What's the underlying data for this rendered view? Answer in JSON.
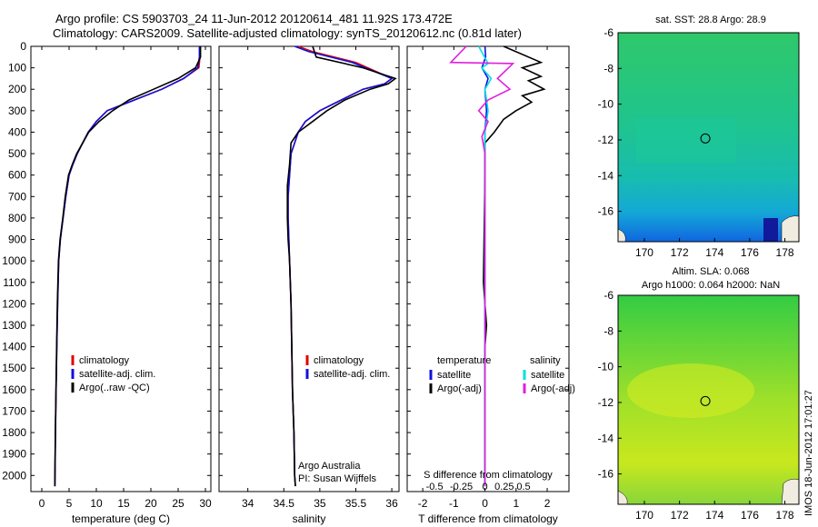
{
  "header": {
    "line1": "Argo profile: CS 5903703_24 11-Jun-2012 20120614_481 11.92S 173.472E",
    "line2": "Climatology: CARS2009. Satellite-adjusted climatology: synTS_20120612.nc (0.81d later)"
  },
  "side_stamp": "IMOS 18-Jun-2012 17:01:27",
  "colors": {
    "climatology": "#e00000",
    "satellite": "#1010e0",
    "argo": "#000000",
    "sal_sat": "#00e0e0",
    "sal_argo": "#e020e0"
  },
  "chart_data": [
    {
      "type": "line",
      "xlabel": "temperature (deg C)",
      "xlim": [
        -2,
        31
      ],
      "xticks": [
        0,
        5,
        10,
        15,
        20,
        25,
        30
      ],
      "ylim": [
        2075,
        0
      ],
      "yticks": [
        0,
        100,
        200,
        300,
        400,
        500,
        600,
        700,
        800,
        900,
        1000,
        1100,
        1200,
        1300,
        1400,
        1500,
        1600,
        1700,
        1800,
        1900,
        2000
      ],
      "legend": [
        "climatology",
        "satellite-adj. clim.",
        "Argo(..raw -QC)"
      ],
      "series": [
        {
          "name": "climatology",
          "x": [
            29,
            29,
            28.8,
            26,
            22,
            17,
            12,
            10,
            8.5,
            7.5,
            6.5,
            5.7,
            5,
            4.4,
            3.9,
            3.4,
            3.1,
            2.9,
            2.75,
            2.62,
            2.5,
            2.4
          ],
          "y": [
            0,
            50,
            100,
            150,
            200,
            250,
            300,
            350,
            400,
            450,
            500,
            550,
            600,
            700,
            800,
            900,
            1000,
            1200,
            1400,
            1600,
            1800,
            2050
          ]
        },
        {
          "name": "satellite-adj. clim.",
          "x": [
            28.9,
            28.9,
            28.6,
            26,
            22,
            17,
            12,
            10,
            8.5,
            7.5,
            6.5,
            5.7,
            5,
            4.4,
            3.9,
            3.4,
            3.1,
            2.9,
            2.75,
            2.62,
            2.5,
            2.4
          ],
          "y": [
            0,
            50,
            100,
            150,
            200,
            250,
            300,
            350,
            400,
            450,
            500,
            550,
            600,
            700,
            800,
            900,
            1000,
            1200,
            1400,
            1600,
            1800,
            2050
          ]
        },
        {
          "name": "Argo(..raw -QC)",
          "x": [
            29.1,
            29.1,
            28.2,
            25,
            20.5,
            16,
            13,
            10.5,
            8.6,
            7.5,
            6.4,
            5.6,
            4.9,
            4.3,
            3.85,
            3.35,
            3.05,
            2.85,
            2.72,
            2.6,
            2.48,
            2.38
          ],
          "y": [
            0,
            50,
            100,
            150,
            200,
            250,
            300,
            350,
            400,
            450,
            500,
            550,
            600,
            700,
            800,
            900,
            1000,
            1200,
            1400,
            1600,
            1800,
            2050
          ]
        }
      ]
    },
    {
      "type": "line",
      "xlabel": "salinity",
      "xlim": [
        33.6,
        36.1
      ],
      "xticks": [
        34,
        34.5,
        35,
        35.5,
        36
      ],
      "ylim": [
        2075,
        0
      ],
      "legend": [
        "climatology",
        "satellite-adj. clim."
      ],
      "series": [
        {
          "name": "climatology",
          "x": [
            34.7,
            34.9,
            35.5,
            36.0,
            35.9,
            35.6,
            35.3,
            35.0,
            34.8,
            34.7,
            34.65,
            34.6,
            34.58,
            34.56,
            34.56,
            34.57,
            34.58,
            34.6,
            34.61,
            34.62,
            34.64,
            34.65,
            34.66
          ],
          "y": [
            0,
            25,
            75,
            150,
            175,
            200,
            250,
            300,
            350,
            400,
            450,
            500,
            600,
            700,
            800,
            900,
            1000,
            1200,
            1400,
            1600,
            1800,
            2000,
            2050
          ]
        },
        {
          "name": "satellite-adj. clim.",
          "x": [
            34.65,
            34.85,
            35.45,
            36.0,
            35.9,
            35.6,
            35.3,
            35.0,
            34.8,
            34.7,
            34.65,
            34.6,
            34.58,
            34.56,
            34.56,
            34.57,
            34.58,
            34.6,
            34.61,
            34.62,
            34.64,
            34.65,
            34.66
          ],
          "y": [
            0,
            25,
            75,
            150,
            175,
            200,
            250,
            300,
            350,
            400,
            450,
            500,
            600,
            700,
            800,
            900,
            1000,
            1200,
            1400,
            1600,
            1800,
            2000,
            2050
          ]
        },
        {
          "name": "Argo(..raw -QC)",
          "x": [
            34.9,
            34.95,
            35.6,
            36.05,
            35.95,
            35.7,
            35.35,
            35.1,
            34.9,
            34.7,
            34.6,
            34.58,
            34.55,
            34.55,
            34.56,
            34.58,
            34.6,
            34.61,
            34.62,
            34.64,
            34.65,
            34.66
          ],
          "y": [
            0,
            50,
            100,
            150,
            175,
            200,
            250,
            300,
            350,
            400,
            450,
            550,
            650,
            800,
            900,
            1000,
            1200,
            1400,
            1600,
            1800,
            2000,
            2050
          ]
        }
      ],
      "annotation": [
        "Argo Australia",
        "PI: Susan Wijffels"
      ]
    },
    {
      "type": "line",
      "xlabel": "T difference from climatology",
      "xlabel_top": "S difference from climatology",
      "xlim": [
        -2.5,
        2.7
      ],
      "xticks": [
        -2,
        -1,
        0,
        1,
        2
      ],
      "xticks_s_labels": [
        "-0.5",
        "-0.25",
        "0",
        "0.25",
        "0.5"
      ],
      "ylim": [
        2075,
        0
      ],
      "legend_headers": [
        "temperature",
        "salinity"
      ],
      "legend": [
        "satellite",
        "Argo(-adj)",
        "satellite",
        "Argo(-adj)"
      ],
      "series": [
        {
          "name": "satellite",
          "x": [
            0,
            0.02,
            -0.1,
            0.1,
            0,
            0.05,
            0,
            0,
            0,
            0
          ],
          "y": [
            0,
            50,
            100,
            150,
            200,
            300,
            400,
            800,
            1400,
            2050
          ]
        },
        {
          "name": "Argo(-adj)",
          "x": [
            0.6,
            1.8,
            1.2,
            1.8,
            1.4,
            1.9,
            1.2,
            1.5,
            1.0,
            0.6,
            0.3,
            0,
            0,
            -0.05,
            0.05,
            0,
            0
          ],
          "y": [
            0,
            75,
            100,
            140,
            160,
            200,
            230,
            260,
            300,
            340,
            400,
            450,
            600,
            1100,
            1300,
            1400,
            2050
          ]
        },
        {
          "name": "satellite",
          "x": [
            -0.2,
            0.1,
            -0.1,
            0.2,
            0,
            0.1,
            0,
            0
          ],
          "y": [
            0,
            80,
            100,
            150,
            200,
            300,
            400,
            2050
          ]
        },
        {
          "name": "Argo(-adj)",
          "x": [
            -0.6,
            -1.1,
            0.9,
            0.4,
            0.8,
            0.1,
            -0.2,
            0.1,
            -0.1,
            0,
            0
          ],
          "y": [
            0,
            75,
            80,
            150,
            200,
            250,
            300,
            350,
            420,
            500,
            2050
          ]
        }
      ]
    },
    {
      "type": "heatmap",
      "title": "sat. SST: 28.8 Argo: 28.9",
      "xlim": [
        168.5,
        178.8
      ],
      "xticks": [
        170,
        172,
        174,
        176,
        178
      ],
      "ylim": [
        -17.7,
        -6
      ],
      "yticks": [
        -6,
        -8,
        -10,
        -12,
        -14,
        -16
      ],
      "marker": {
        "lon": 173.472,
        "lat": -11.92
      }
    },
    {
      "type": "heatmap",
      "title": "Altim. SLA: 0.068",
      "subtitle": "Argo h1000: 0.064 h2000: NaN",
      "xlim": [
        168.5,
        178.8
      ],
      "xticks": [
        170,
        172,
        174,
        176,
        178
      ],
      "ylim": [
        -17.7,
        -6
      ],
      "yticks": [
        -6,
        -8,
        -10,
        -12,
        -14,
        -16
      ],
      "marker": {
        "lon": 173.472,
        "lat": -11.92
      }
    }
  ]
}
